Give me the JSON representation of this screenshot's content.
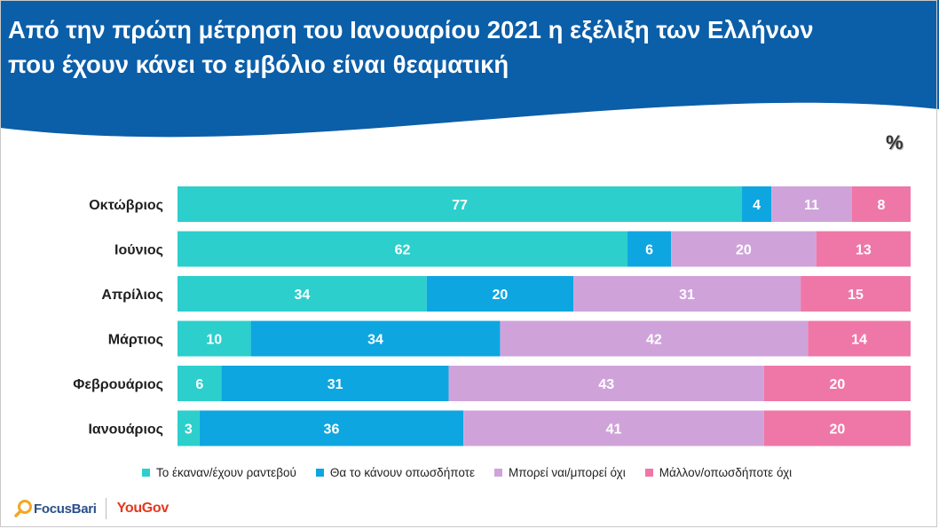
{
  "header": {
    "title_line1": "Από την πρώτη μέτρηση του Ιανουαρίου 2021 η εξέλιξη των Ελλήνων",
    "title_line2": "που έχουν κάνει το εμβόλιο είναι θεαματική",
    "background": "#0b5ea8"
  },
  "unit_label": "%",
  "chart_data": {
    "type": "bar",
    "orientation": "horizontal",
    "stacked": true,
    "percent_stacked": true,
    "categories": [
      "Οκτώβριος",
      "Ιούνιος",
      "Απρίλιος ",
      "Μάρτιος",
      "Φεβρουάριος",
      "Ιανουάριος"
    ],
    "series": [
      {
        "name": "Το έκαναν/έχουν ραντεβού",
        "color": "#2ccfcc",
        "values": [
          77,
          62,
          34,
          10,
          6,
          3
        ]
      },
      {
        "name": "Θα το κάνουν οπωσδήποτε",
        "color": "#0ea6e0",
        "values": [
          4,
          6,
          20,
          34,
          31,
          36
        ]
      },
      {
        "name": "Μπορεί ναι/μπορεί όχι",
        "color": "#cfa3da",
        "values": [
          11,
          20,
          31,
          42,
          43,
          41
        ]
      },
      {
        "name": "Μάλλον/οπωσδήποτε όχι",
        "color": "#ef77a7",
        "values": [
          8,
          13,
          15,
          14,
          20,
          20
        ]
      }
    ],
    "legend_position": "bottom",
    "grid": false
  },
  "footer": {
    "brand_left": "FocusBari",
    "brand_right": "YouGov"
  }
}
